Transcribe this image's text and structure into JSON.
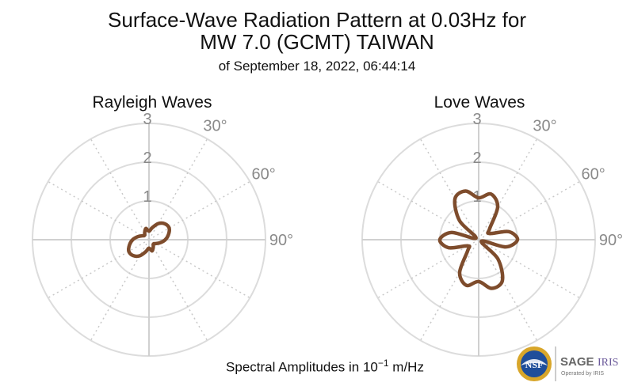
{
  "title": {
    "line1": "Surface-Wave Radiation Pattern at 0.03Hz for",
    "line2": "MW 7.0 (GCMT) TAIWAN",
    "line3": "of September 18, 2022, 06:44:14"
  },
  "footnote": {
    "prefix": "Spectral Amplitudes in ",
    "base": "10",
    "exponent": "−1",
    "unit": " m/Hz"
  },
  "logos": {
    "nsf": "NSF",
    "sage": "SAGE",
    "iris": "IRIS",
    "operated": "Operated by IRIS",
    "colors": {
      "nsf_blue": "#1f4e9a",
      "nsf_gold": "#d8a62a",
      "sage_gray": "#666666",
      "iris_purple": "#6b5a9a"
    }
  },
  "chart_data": [
    {
      "type": "polar-line",
      "title": "Rayleigh Waves",
      "radial_ticks": [
        1,
        2,
        3
      ],
      "rlim": [
        0,
        3
      ],
      "angle_ticks": [
        "30°",
        "60°",
        "90°"
      ],
      "angle_tick_values_deg": [
        30,
        60,
        90
      ],
      "angle_zero": "north",
      "angle_direction": "clockwise",
      "grid": true,
      "color": "#7e4c2c",
      "series": [
        {
          "azimuth_deg": [
            0,
            15,
            30,
            45,
            60,
            75,
            90,
            105,
            120,
            135,
            150,
            165,
            180,
            195,
            210,
            225,
            240,
            255,
            270,
            285,
            300,
            315,
            330,
            345,
            360
          ],
          "amplitude": [
            0.22,
            0.32,
            0.48,
            0.58,
            0.6,
            0.52,
            0.42,
            0.3,
            0.2,
            0.16,
            0.22,
            0.3,
            0.22,
            0.32,
            0.48,
            0.58,
            0.6,
            0.52,
            0.42,
            0.3,
            0.2,
            0.16,
            0.22,
            0.3,
            0.22
          ]
        }
      ]
    },
    {
      "type": "polar-line",
      "title": "Love Waves",
      "radial_ticks": [
        1,
        2,
        3
      ],
      "rlim": [
        0,
        3
      ],
      "angle_ticks": [
        "30°",
        "60°",
        "90°"
      ],
      "angle_tick_values_deg": [
        30,
        60,
        90
      ],
      "angle_zero": "north",
      "angle_direction": "clockwise",
      "grid": true,
      "color": "#7e4c2c",
      "series": [
        {
          "azimuth_deg": [
            0,
            15,
            30,
            45,
            60,
            75,
            90,
            105,
            120,
            135,
            150,
            165,
            180,
            195,
            210,
            225,
            240,
            255,
            270,
            285,
            300,
            315,
            330,
            345,
            360
          ],
          "amplitude": [
            1.08,
            1.22,
            0.98,
            0.4,
            0.32,
            0.8,
            1.0,
            0.72,
            0.08,
            0.7,
            1.22,
            1.3,
            1.08,
            1.22,
            0.98,
            0.4,
            0.32,
            0.8,
            1.0,
            0.72,
            0.08,
            0.7,
            1.22,
            1.3,
            1.08
          ]
        }
      ]
    }
  ]
}
